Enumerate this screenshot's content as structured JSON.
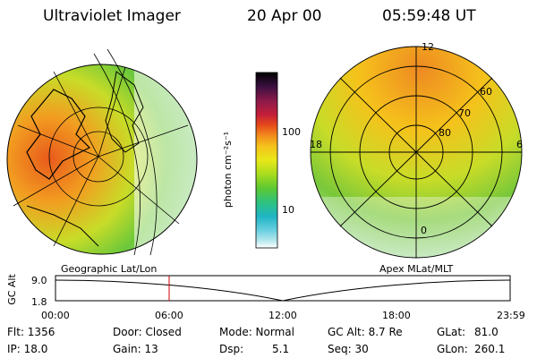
{
  "header": {
    "instrument": "Ultraviolet Imager",
    "date": "20 Apr 00",
    "time": "05:59:48 UT"
  },
  "left_panel": {
    "caption": "Geographic Lat/Lon"
  },
  "right_panel": {
    "caption": "Apex MLat/MLT",
    "mlt_labels": [
      "12",
      "18",
      "6",
      "0"
    ],
    "mlat_labels": [
      "60",
      "70",
      "80"
    ]
  },
  "colorbar": {
    "label": "photon cm⁻²s⁻¹",
    "ticks": [
      "100",
      "10"
    ],
    "colors": [
      "#000000",
      "#3a1040",
      "#8b1a4a",
      "#c41e3a",
      "#e64a1a",
      "#f28c1c",
      "#f5c21b",
      "#e8e81a",
      "#a8dc1e",
      "#5cc832",
      "#2ec27e",
      "#1fb4c4",
      "#6ad0e0",
      "#b8e8ee",
      "#ffffff"
    ]
  },
  "orbit_plot": {
    "ylabel": "GC Alt",
    "yticks": [
      "9.0",
      "1.8"
    ],
    "xticks": [
      "00:00",
      "06:00",
      "12:00",
      "18:00",
      "23:59"
    ],
    "current_time_fraction": 0.25,
    "marker_color": "#cc0000"
  },
  "info": {
    "flt": "Flt: 1356",
    "ip": "IP: 18.0",
    "door": "Door: Closed",
    "gain": "Gain: 13",
    "mode": "Mode: Normal",
    "dsp": "Dsp:",
    "dsp_value": "5.1",
    "gc_alt": "GC Alt: 8.7 Re",
    "seq": "Seq: 30",
    "glat": "GLat:",
    "glat_value": "81.0",
    "glon": "GLon:",
    "glon_value": "260.1"
  }
}
